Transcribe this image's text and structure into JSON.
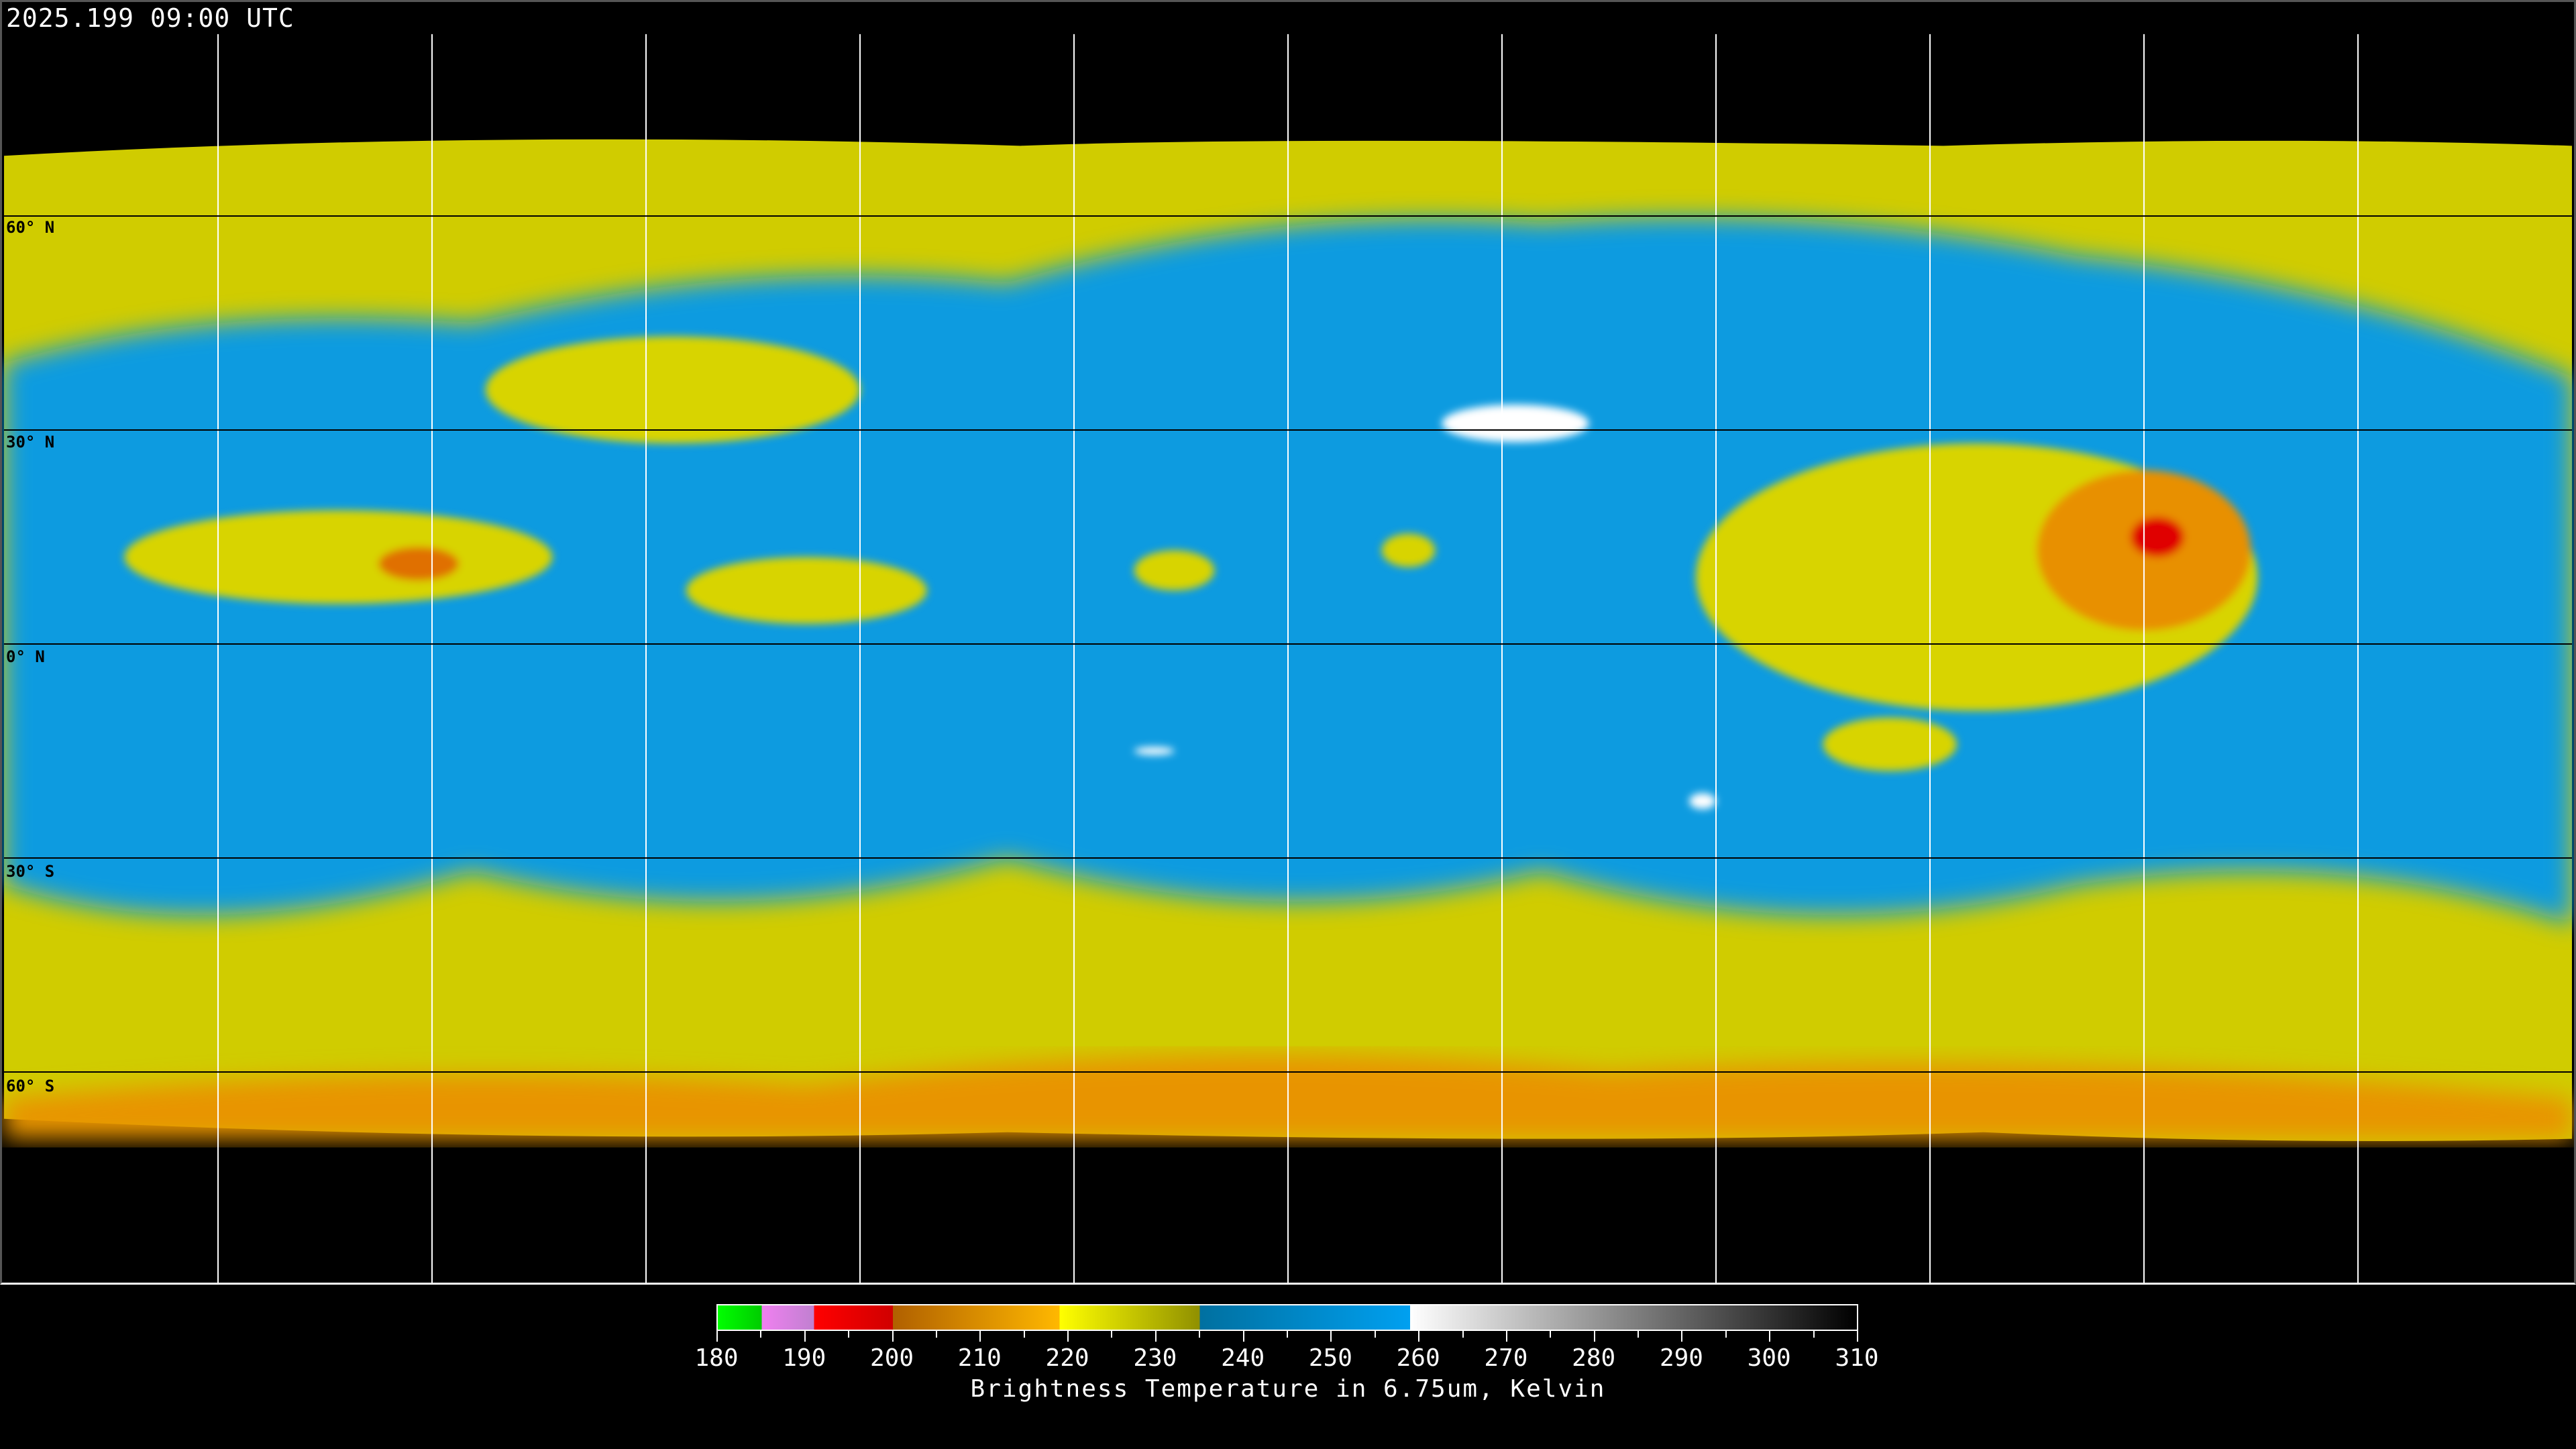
{
  "timestamp": "2025.199 09:00 UTC",
  "map": {
    "projection": "equirectangular",
    "graticule_degrees": 30,
    "latitude_labels": [
      "60° N",
      "30° N",
      "0° N",
      "30° S",
      "60° S"
    ],
    "colors": {
      "background": "#000000",
      "moist": "#0a9be0",
      "dry_high": "#d8d400",
      "cold": "#e88a00",
      "very_cold": "#e00000",
      "coast_land": "#000000",
      "coast_polar": "#ffffff",
      "grid": "#000000"
    }
  },
  "colorbar": {
    "title": "Brightness Temperature in 6.75um, Kelvin",
    "min": 180,
    "max": 310,
    "tick_labels": [
      "180",
      "190",
      "200",
      "210",
      "220",
      "230",
      "240",
      "250",
      "260",
      "270",
      "280",
      "290",
      "300",
      "310"
    ],
    "segments": [
      {
        "from": 180,
        "to": 185,
        "colors": [
          "#00ff00",
          "#00cc00"
        ]
      },
      {
        "from": 185,
        "to": 191,
        "colors": [
          "#f080f0",
          "#c080d0"
        ]
      },
      {
        "from": 191,
        "to": 200,
        "colors": [
          "#ff0000",
          "#d00000"
        ]
      },
      {
        "from": 200,
        "to": 219,
        "colors": [
          "#b06000",
          "#ffb800"
        ]
      },
      {
        "from": 219,
        "to": 235,
        "colors": [
          "#ffff00",
          "#909000"
        ]
      },
      {
        "from": 235,
        "to": 259,
        "colors": [
          "#0070a0",
          "#00a0f0"
        ]
      },
      {
        "from": 259,
        "to": 310,
        "colors": [
          "#ffffff",
          "#000000"
        ]
      }
    ]
  }
}
